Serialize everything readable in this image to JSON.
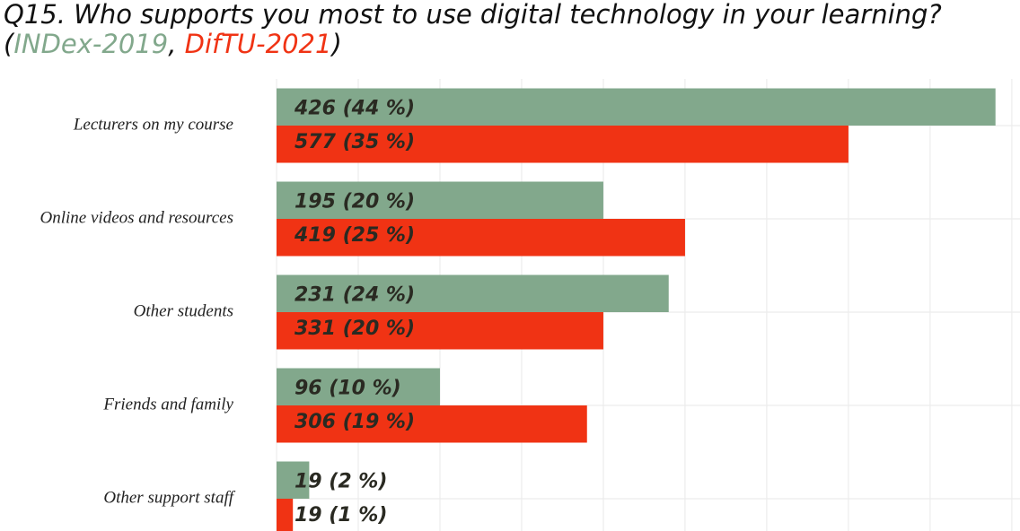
{
  "chart_data": {
    "type": "bar",
    "orientation": "horizontal",
    "title": "Q15. Who supports you most to use digital technology in your learning?",
    "subtitle_separators": [
      "(",
      ", ",
      ")"
    ],
    "categories": [
      "Lecturers on my course",
      "Online videos and resources",
      "Other students",
      "Friends and family",
      "Other support staff"
    ],
    "series": [
      {
        "name": "INDex-2019",
        "color": "#82a88c",
        "values": [
          44,
          20,
          24,
          10,
          2
        ],
        "value_labels": [
          "426  (44 %)",
          "195  (20 %)",
          "231  (24 %)",
          "96  (10 %)",
          "19  (2 %)"
        ]
      },
      {
        "name": "DifTU-2021",
        "color": "#f03314",
        "values": [
          35,
          25,
          20,
          19,
          1
        ],
        "value_labels": [
          "577  (35 %)",
          "419  (25 %)",
          "331  (20 %)",
          "306  (19 %)",
          "19  (1 %)"
        ]
      }
    ],
    "xlim": [
      0,
      45.5
    ],
    "xticks": [
      0,
      5,
      10,
      15,
      20,
      25,
      30,
      35,
      40,
      45
    ],
    "show_tick_labels": false,
    "grid": true
  }
}
